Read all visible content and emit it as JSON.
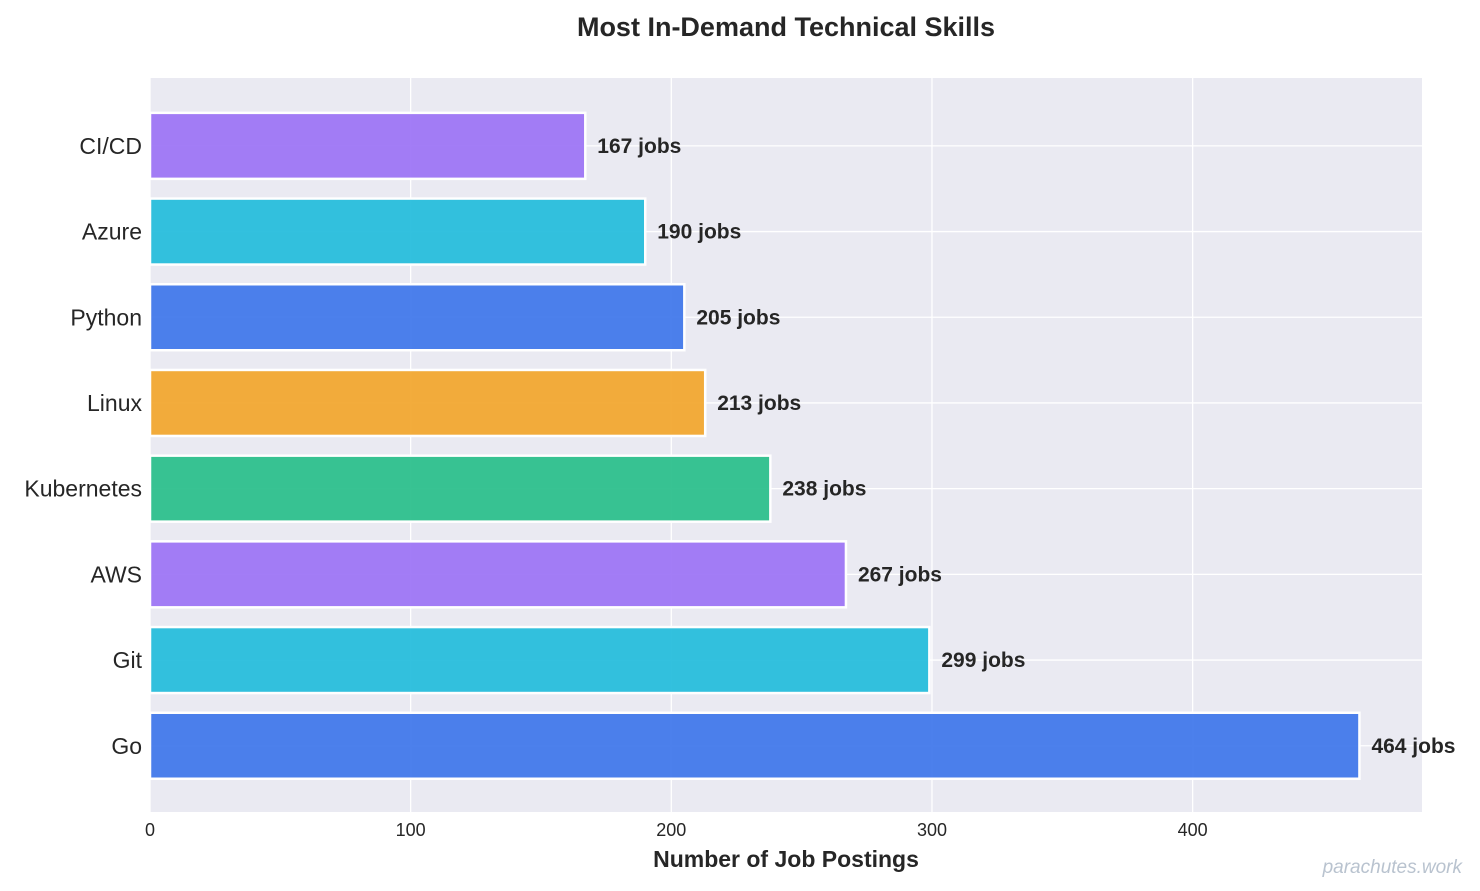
{
  "chart_data": {
    "type": "bar",
    "orientation": "horizontal",
    "title": "Most In-Demand Technical Skills",
    "xlabel": "Number of Job Postings",
    "ylabel": "",
    "categories": [
      "CI/CD",
      "Azure",
      "Python",
      "Linux",
      "Kubernetes",
      "AWS",
      "Git",
      "Go"
    ],
    "values": [
      167,
      190,
      205,
      213,
      238,
      267,
      299,
      464
    ],
    "value_labels": [
      "167 jobs",
      "190 jobs",
      "205 jobs",
      "213 jobs",
      "238 jobs",
      "267 jobs",
      "299 jobs",
      "464 jobs"
    ],
    "bar_colors": [
      "#9b72f5",
      "#22bcdb",
      "#3d75ea",
      "#f2a52b",
      "#27be8a",
      "#9b72f5",
      "#22bcdb",
      "#3d75ea"
    ],
    "xlim": [
      0,
      488
    ],
    "xticks": [
      0,
      100,
      200,
      300,
      400
    ],
    "xtick_labels": [
      "0",
      "100",
      "200",
      "300",
      "400"
    ],
    "grid": true,
    "background_color": "#eaeaf2",
    "grid_color": "#ffffff"
  },
  "watermark": "parachutes.work"
}
